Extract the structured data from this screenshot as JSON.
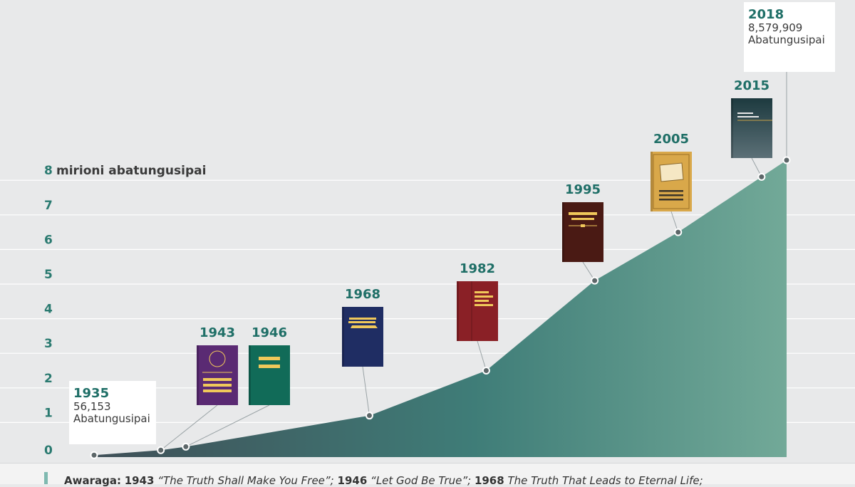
{
  "chart_data": {
    "type": "area",
    "ylabel": "mirioni abatungusipai",
    "yticks": [
      0,
      1,
      2,
      3,
      4,
      5,
      6,
      7,
      8
    ],
    "ylim": [
      0,
      9
    ],
    "x": [
      1935,
      1943,
      1946,
      1968,
      1982,
      1995,
      2005,
      2015,
      2018
    ],
    "values": [
      0.056153,
      0.2,
      0.3,
      1.2,
      2.5,
      5.1,
      6.5,
      8.1,
      8.579909
    ],
    "colors": {
      "area_start": "#3f4f57",
      "area_end": "#72a998",
      "grid": "#ffffff"
    },
    "start_callout": {
      "year": "1935",
      "count": "56,153",
      "label": "Abatungusipai"
    },
    "end_callout": {
      "year": "2018",
      "count": "8,579,909",
      "label": "Abatungusipai"
    },
    "books": [
      {
        "year": "1943",
        "color": "#5a2a73",
        "accent": "#f0c85a"
      },
      {
        "year": "1946",
        "color": "#116b58",
        "accent": "#f0c85a"
      },
      {
        "year": "1968",
        "color": "#1f2d63",
        "accent": "#f0c85a"
      },
      {
        "year": "1982",
        "color": "#8a2026",
        "accent": "#f0c85a"
      },
      {
        "year": "1995",
        "color": "#4a1a14",
        "accent": "#f0c85a"
      },
      {
        "year": "2005",
        "color": "#d9a84a",
        "accent": "#3a3328"
      },
      {
        "year": "2015",
        "color": "#1d3a3f",
        "accent": "#e8e8e8"
      }
    ]
  },
  "caption": {
    "label": "Awaraga:",
    "y1943": "1943",
    "t1943": "“The Truth Shall Make You Free”;",
    "y1946": "1946",
    "t1946": "“Let God Be True”;",
    "y1968": "1968",
    "t1968": "The Truth That Leads to Eternal Life;"
  }
}
